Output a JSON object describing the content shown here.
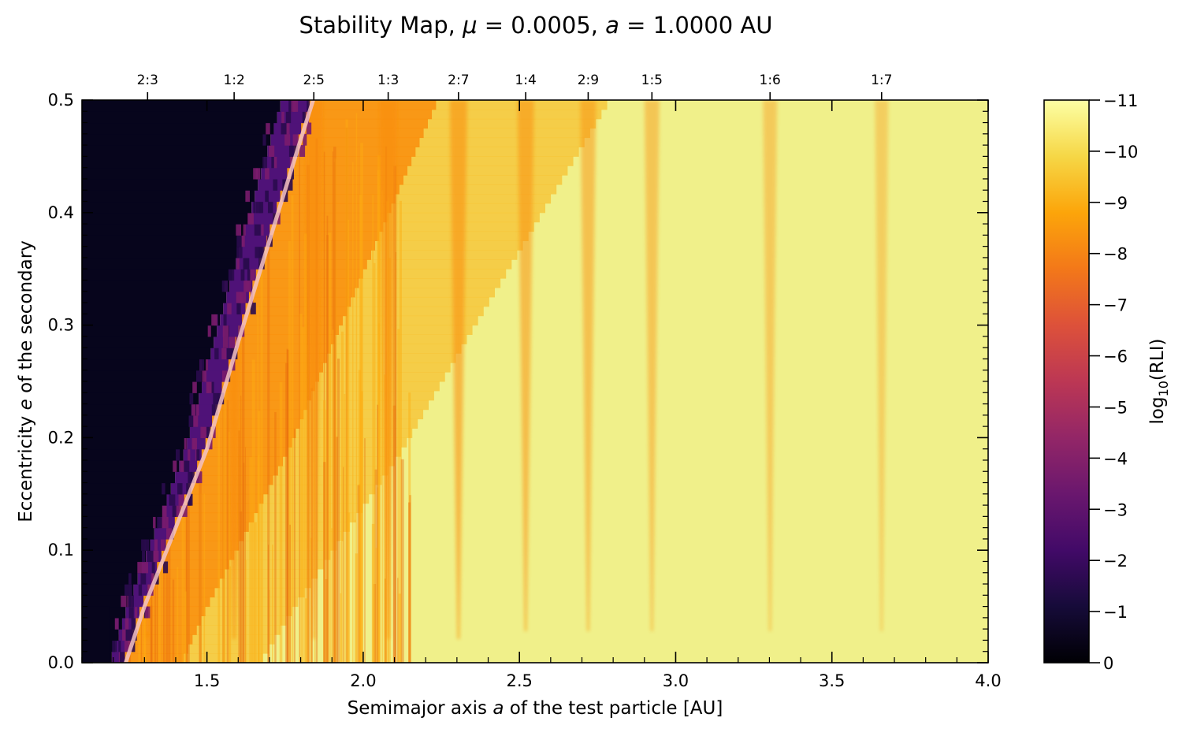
{
  "chart_data": {
    "type": "heatmap",
    "title": "Stability Map, μ = 0.0005, a = 1.0000 AU",
    "title_parts": {
      "prefix": "Stability Map, ",
      "mu_symbol": "μ",
      "mu_value": " = 0.0005, ",
      "a_symbol": "a",
      "a_value": " = 1.0000 AU"
    },
    "xlabel": "Semimajor axis a of the test particle [AU]",
    "xlabel_parts": {
      "before": "Semimajor axis ",
      "var": "a",
      "after": " of the test particle [AU]"
    },
    "ylabel": "Eccentricity e of the secondary",
    "ylabel_parts": {
      "before": "Eccentricity ",
      "var": "e",
      "after": " of the secondary"
    },
    "colorbar_label": "log10(RLI)",
    "colorbar_label_parts": {
      "base": "log",
      "sub": "10",
      "rest": "(RLI)"
    },
    "xlim": [
      1.1,
      4.0
    ],
    "ylim": [
      0.0,
      0.5
    ],
    "x_ticks": [
      1.5,
      2.0,
      2.5,
      3.0,
      3.5,
      4.0
    ],
    "x_tick_labels": [
      "1.5",
      "2.0",
      "2.5",
      "3.0",
      "3.5",
      "4.0"
    ],
    "y_ticks": [
      0.0,
      0.1,
      0.2,
      0.3,
      0.4,
      0.5
    ],
    "y_tick_labels": [
      "0.0",
      "0.1",
      "0.2",
      "0.3",
      "0.4",
      "0.5"
    ],
    "colorbar_range": [
      0,
      -11
    ],
    "colorbar_ticks": [
      -11,
      -10,
      -9,
      -8,
      -7,
      -6,
      -5,
      -4,
      -3,
      -2,
      -1,
      0
    ],
    "colorbar_tick_labels": [
      "−11",
      "−10",
      "−9",
      "−8",
      "−7",
      "−6",
      "−5",
      "−4",
      "−3",
      "−2",
      "−1",
      "0"
    ],
    "colormap": "inferno",
    "resonances": [
      {
        "label": "2:3",
        "a": 1.31
      },
      {
        "label": "1:2",
        "a": 1.587
      },
      {
        "label": "2:5",
        "a": 1.842
      },
      {
        "label": "1:3",
        "a": 2.08
      },
      {
        "label": "2:7",
        "a": 2.305
      },
      {
        "label": "1:4",
        "a": 2.52
      },
      {
        "label": "2:9",
        "a": 2.72
      },
      {
        "label": "1:5",
        "a": 2.924
      },
      {
        "label": "1:6",
        "a": 3.302
      },
      {
        "label": "1:7",
        "a": 3.659
      }
    ],
    "stability_boundary": {
      "x": [
        1.24,
        1.3,
        1.4,
        1.5,
        1.6,
        1.7,
        1.8,
        1.84
      ],
      "y": [
        0.0,
        0.05,
        0.12,
        0.19,
        0.285,
        0.375,
        0.465,
        0.5
      ]
    },
    "colors": {
      "boundary_line": "#f3c2c4",
      "unstable": "#07051c",
      "chaotic_edge": "#4f1278",
      "orange": "#f98e09",
      "stable": "#f1f18c"
    }
  }
}
